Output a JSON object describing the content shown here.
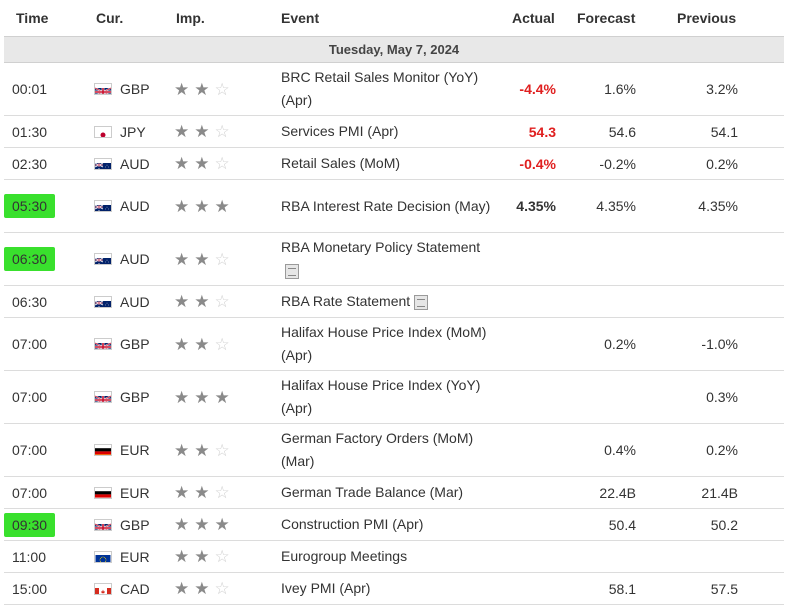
{
  "headers": {
    "time": "Time",
    "currency": "Cur.",
    "importance": "Imp.",
    "event": "Event",
    "actual": "Actual",
    "forecast": "Forecast",
    "previous": "Previous"
  },
  "date_label": "Tuesday, May 7, 2024",
  "colors": {
    "highlight": "#39e02d",
    "actual_red": "#e02020",
    "star_on": "#8a8a8a",
    "star_off": "#d0d0d0"
  },
  "rows": [
    {
      "time": "00:01",
      "currency": "GBP",
      "flag": "uk-flag-icon",
      "stars": 2,
      "event": "BRC Retail Sales Monitor (YoY) (Apr)",
      "doc": false,
      "actual": "-4.4%",
      "actual_color": "red",
      "forecast": "1.6%",
      "previous": "3.2%",
      "highlighted": false
    },
    {
      "time": "01:30",
      "currency": "JPY",
      "flag": "jp-flag-icon",
      "stars": 2,
      "event": "Services PMI (Apr)",
      "doc": false,
      "actual": "54.3",
      "actual_color": "red",
      "forecast": "54.6",
      "previous": "54.1",
      "highlighted": false
    },
    {
      "time": "02:30",
      "currency": "AUD",
      "flag": "au-flag-icon",
      "stars": 2,
      "event": "Retail Sales (MoM)",
      "doc": false,
      "actual": "-0.4%",
      "actual_color": "red",
      "forecast": "-0.2%",
      "previous": "0.2%",
      "highlighted": false
    },
    {
      "time": "05:30",
      "currency": "AUD",
      "flag": "au-flag-icon",
      "stars": 3,
      "event": "RBA Interest Rate Decision (May)",
      "doc": false,
      "actual": "4.35%",
      "actual_color": "black",
      "forecast": "4.35%",
      "previous": "4.35%",
      "highlighted": true
    },
    {
      "time": "06:30",
      "currency": "AUD",
      "flag": "au-flag-icon",
      "stars": 2,
      "event": "RBA Monetary Policy Statement",
      "doc": true,
      "actual": "",
      "actual_color": "black",
      "forecast": "",
      "previous": "",
      "highlighted": true
    },
    {
      "time": "06:30",
      "currency": "AUD",
      "flag": "au-flag-icon",
      "stars": 2,
      "event": "RBA Rate Statement",
      "doc": true,
      "actual": "",
      "actual_color": "black",
      "forecast": "",
      "previous": "",
      "highlighted": false
    },
    {
      "time": "07:00",
      "currency": "GBP",
      "flag": "uk-flag-icon",
      "stars": 2,
      "event": "Halifax House Price Index (MoM) (Apr)",
      "doc": false,
      "actual": "",
      "actual_color": "black",
      "forecast": "0.2%",
      "previous": "-1.0%",
      "highlighted": false
    },
    {
      "time": "07:00",
      "currency": "GBP",
      "flag": "uk-flag-icon",
      "stars": 3,
      "event": "Halifax House Price Index (YoY) (Apr)",
      "doc": false,
      "actual": "",
      "actual_color": "black",
      "forecast": "",
      "previous": "0.3%",
      "highlighted": false
    },
    {
      "time": "07:00",
      "currency": "EUR",
      "flag": "de-flag-icon",
      "stars": 2,
      "event": "German Factory Orders (MoM) (Mar)",
      "doc": false,
      "actual": "",
      "actual_color": "black",
      "forecast": "0.4%",
      "previous": "0.2%",
      "highlighted": false
    },
    {
      "time": "07:00",
      "currency": "EUR",
      "flag": "de-flag-icon",
      "stars": 2,
      "event": "German Trade Balance (Mar)",
      "doc": false,
      "actual": "",
      "actual_color": "black",
      "forecast": "22.4B",
      "previous": "21.4B",
      "highlighted": false
    },
    {
      "time": "09:30",
      "currency": "GBP",
      "flag": "uk-flag-icon",
      "stars": 3,
      "event": "Construction PMI (Apr)",
      "doc": false,
      "actual": "",
      "actual_color": "black",
      "forecast": "50.4",
      "previous": "50.2",
      "highlighted": true
    },
    {
      "time": "11:00",
      "currency": "EUR",
      "flag": "eu-flag-icon",
      "stars": 2,
      "event": "Eurogroup Meetings",
      "doc": false,
      "actual": "",
      "actual_color": "black",
      "forecast": "",
      "previous": "",
      "highlighted": false
    },
    {
      "time": "15:00",
      "currency": "CAD",
      "flag": "ca-flag-icon",
      "stars": 2,
      "event": "Ivey PMI (Apr)",
      "doc": false,
      "actual": "",
      "actual_color": "black",
      "forecast": "58.1",
      "previous": "57.5",
      "highlighted": false
    }
  ]
}
